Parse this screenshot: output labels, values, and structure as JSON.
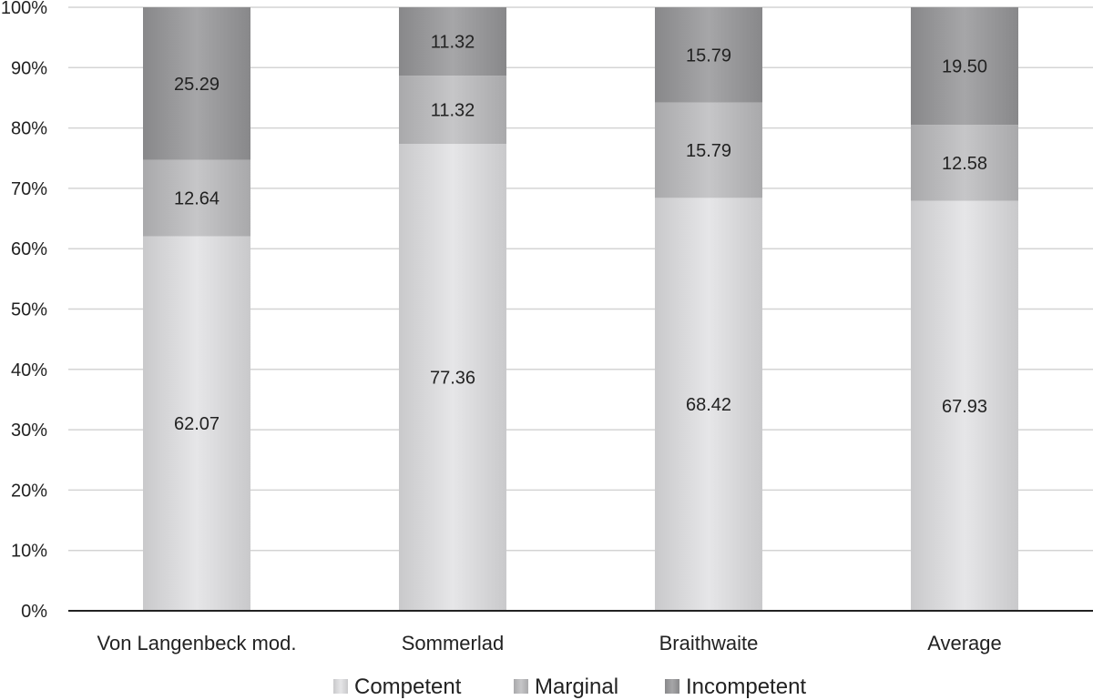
{
  "chart_data": {
    "type": "bar",
    "stacked": true,
    "percent": true,
    "categories": [
      "Von Langenbeck mod.",
      "Sommerlad",
      "Braithwaite",
      "Average"
    ],
    "series": [
      {
        "name": "Competent",
        "values": [
          62.07,
          77.36,
          68.42,
          67.93
        ],
        "labels": [
          "62.07",
          "77.36",
          "68.42",
          "67.93"
        ],
        "color": "#d9d9db"
      },
      {
        "name": "Marginal",
        "values": [
          12.64,
          11.32,
          15.79,
          12.58
        ],
        "labels": [
          "12.64",
          "11.32",
          "15.79",
          "12.58"
        ],
        "color": "#bcbcbe"
      },
      {
        "name": "Incompetent",
        "values": [
          25.29,
          11.32,
          15.79,
          19.5
        ],
        "labels": [
          "25.29",
          "11.32",
          "15.79",
          "19.50"
        ],
        "color": "#9b9b9d"
      }
    ],
    "yticks": [
      "0%",
      "10%",
      "20%",
      "30%",
      "40%",
      "50%",
      "60%",
      "70%",
      "80%",
      "90%",
      "100%"
    ],
    "ylim": [
      0,
      100
    ],
    "grid": true,
    "legend_position": "bottom",
    "title": "",
    "xlabel": "",
    "ylabel": ""
  }
}
